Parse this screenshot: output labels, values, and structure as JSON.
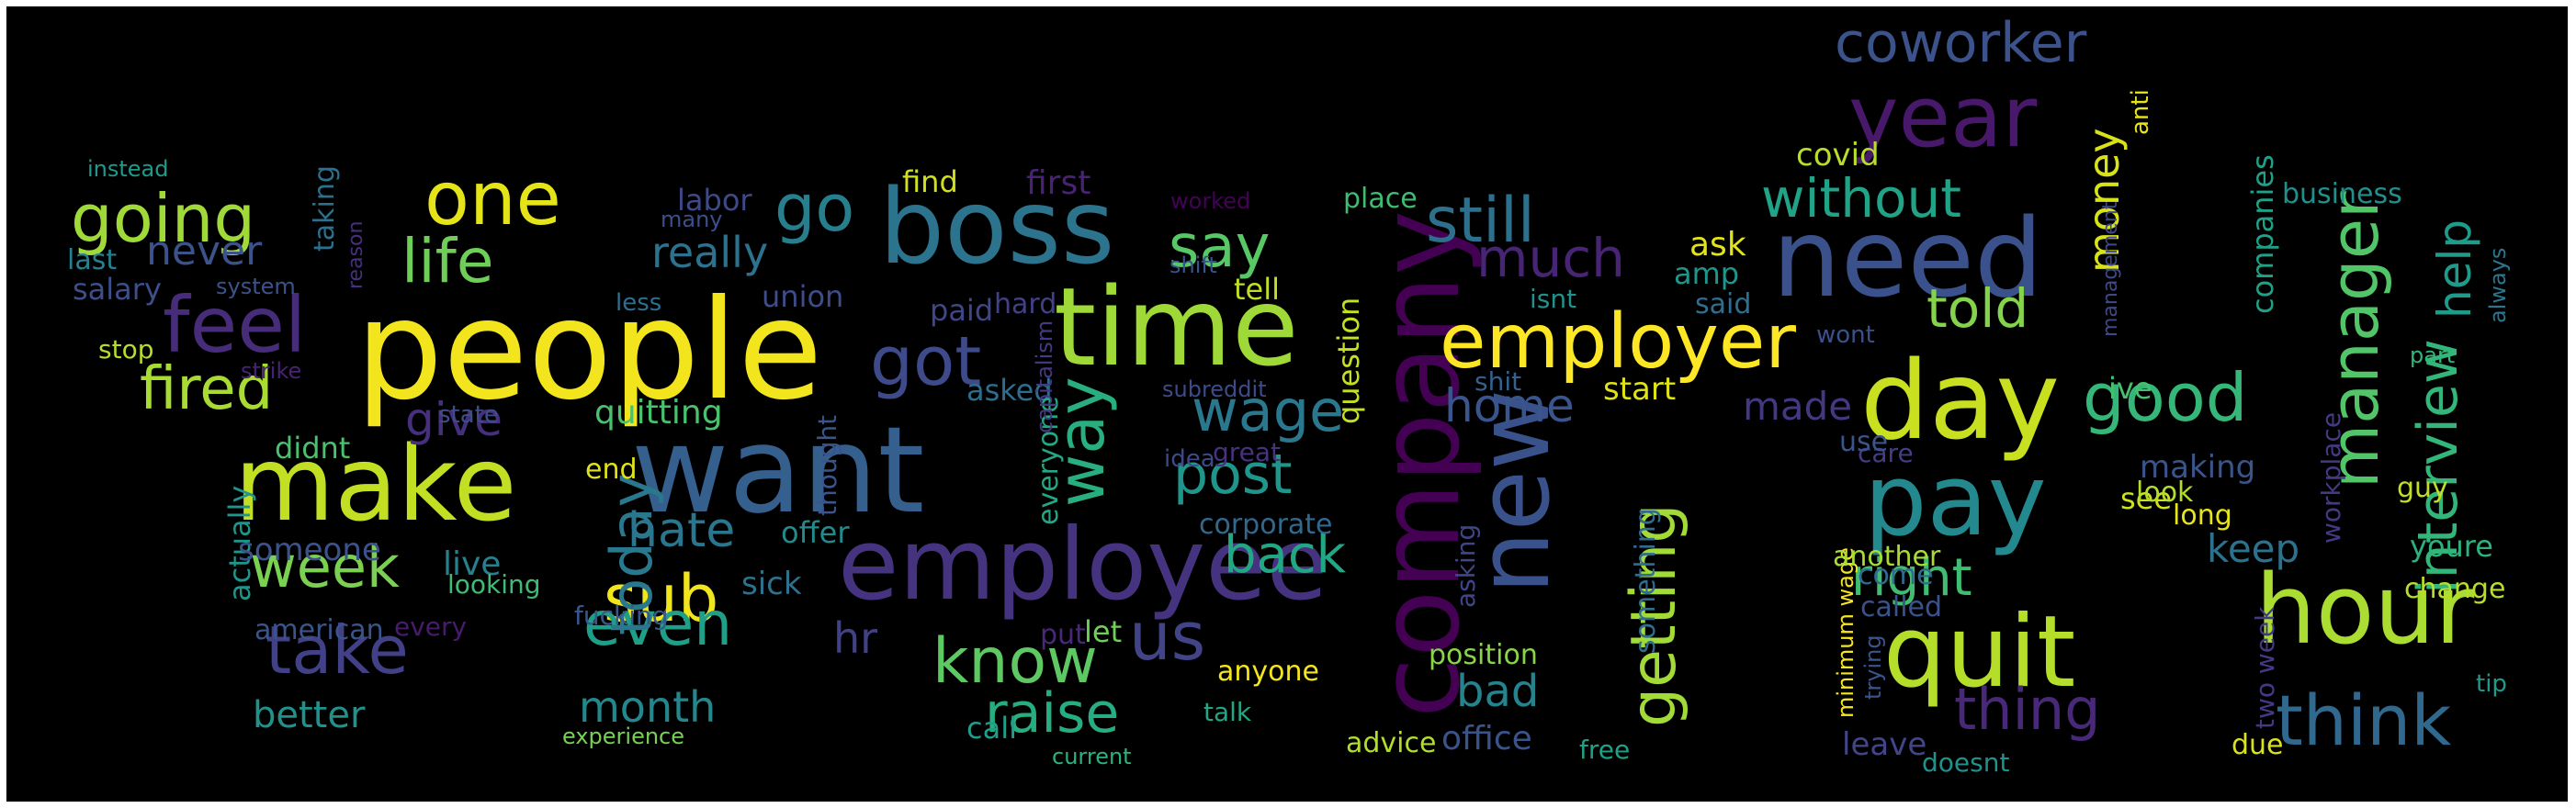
{
  "wordcloud": {
    "background_color": "#000000",
    "colormap": "viridis",
    "words": [
      {
        "text": "people",
        "color": "#f2e51d"
      },
      {
        "text": "time",
        "color": "#9fd938"
      },
      {
        "text": "boss",
        "color": "#2c738e"
      },
      {
        "text": "want",
        "color": "#355f8d"
      },
      {
        "text": "employee",
        "color": "#46337f"
      },
      {
        "text": "make",
        "color": "#c2df23"
      },
      {
        "text": "company",
        "color": "#440154"
      },
      {
        "text": "new",
        "color": "#3a528b"
      },
      {
        "text": "need",
        "color": "#3b518b"
      },
      {
        "text": "day",
        "color": "#c8e020"
      },
      {
        "text": "pay",
        "color": "#23898e"
      },
      {
        "text": "quit",
        "color": "#b5de2b"
      },
      {
        "text": "hour",
        "color": "#aadc32"
      },
      {
        "text": "year",
        "color": "#48186a"
      },
      {
        "text": "employer",
        "color": "#fde725"
      },
      {
        "text": "feel",
        "color": "#472c7a"
      },
      {
        "text": "going",
        "color": "#a0da39"
      },
      {
        "text": "one",
        "color": "#e5e419"
      },
      {
        "text": "life",
        "color": "#6ece58"
      },
      {
        "text": "got",
        "color": "#3e4a89"
      },
      {
        "text": "go",
        "color": "#277f8e"
      },
      {
        "text": "still",
        "color": "#2d708e"
      },
      {
        "text": "fired",
        "color": "#a8db34"
      },
      {
        "text": "week",
        "color": "#7ad151"
      },
      {
        "text": "take",
        "color": "#424086"
      },
      {
        "text": "sub",
        "color": "#f1e51d"
      },
      {
        "text": "even",
        "color": "#1f9f88"
      },
      {
        "text": "know",
        "color": "#5ec962"
      },
      {
        "text": "us",
        "color": "#414487"
      },
      {
        "text": "raise",
        "color": "#26ad81"
      },
      {
        "text": "wage",
        "color": "#2a788e"
      },
      {
        "text": "post",
        "color": "#1f968b"
      },
      {
        "text": "back",
        "color": "#22a785"
      },
      {
        "text": "way",
        "color": "#29af7f"
      },
      {
        "text": "say",
        "color": "#58c765"
      },
      {
        "text": "much",
        "color": "#482475"
      },
      {
        "text": "told",
        "color": "#84d44b"
      },
      {
        "text": "without",
        "color": "#20a386"
      },
      {
        "text": "coworker",
        "color": "#3b528b"
      },
      {
        "text": "getting",
        "color": "#a2da37"
      },
      {
        "text": "home",
        "color": "#3a548c"
      },
      {
        "text": "good",
        "color": "#35b779"
      },
      {
        "text": "manager",
        "color": "#52c569"
      },
      {
        "text": "interview",
        "color": "#32b67a"
      },
      {
        "text": "help",
        "color": "#1e9b8a"
      },
      {
        "text": "think",
        "color": "#31688e"
      },
      {
        "text": "thing",
        "color": "#482878"
      },
      {
        "text": "right",
        "color": "#40bd72"
      },
      {
        "text": "money",
        "color": "#d8e219"
      },
      {
        "text": "today",
        "color": "#2a788e"
      },
      {
        "text": "hate",
        "color": "#2a768e"
      },
      {
        "text": "give",
        "color": "#46307e"
      },
      {
        "text": "never",
        "color": "#3b528b"
      },
      {
        "text": "really",
        "color": "#2c728e"
      },
      {
        "text": "better",
        "color": "#20928c"
      },
      {
        "text": "month",
        "color": "#23888e"
      },
      {
        "text": "hr",
        "color": "#424186"
      },
      {
        "text": "bad",
        "color": "#25838e"
      },
      {
        "text": "office",
        "color": "#3a538b"
      },
      {
        "text": "made",
        "color": "#453781"
      },
      {
        "text": "keep",
        "color": "#2c718e"
      },
      {
        "text": "covid",
        "color": "#b8de29"
      },
      {
        "text": "ask",
        "color": "#e2e418"
      },
      {
        "text": "business",
        "color": "#21908d"
      },
      {
        "text": "companies",
        "color": "#1fa188"
      },
      {
        "text": "quitting",
        "color": "#4ac16d"
      },
      {
        "text": "labor",
        "color": "#3e4989"
      },
      {
        "text": "first",
        "color": "#482374"
      },
      {
        "text": "find",
        "color": "#d0e11c"
      },
      {
        "text": "union",
        "color": "#3e4c8a"
      },
      {
        "text": "paid",
        "color": "#3f4788"
      },
      {
        "text": "hard",
        "color": "#424086"
      },
      {
        "text": "tell",
        "color": "#c0df25"
      },
      {
        "text": "place",
        "color": "#3fbc73"
      },
      {
        "text": "worked",
        "color": "#440256"
      },
      {
        "text": "shift",
        "color": "#3b528b"
      },
      {
        "text": "question",
        "color": "#c5e021"
      },
      {
        "text": "isnt",
        "color": "#21918c"
      },
      {
        "text": "amp",
        "color": "#1f968b"
      },
      {
        "text": "said",
        "color": "#2e6e8e"
      },
      {
        "text": "start",
        "color": "#dde318"
      },
      {
        "text": "shit",
        "color": "#34618d"
      },
      {
        "text": "asked",
        "color": "#2e6d8e"
      },
      {
        "text": "everyone",
        "color": "#22a884"
      },
      {
        "text": "capitalism",
        "color": "#443983"
      },
      {
        "text": "subreddit",
        "color": "#3e4a89"
      },
      {
        "text": "thought",
        "color": "#39558c"
      },
      {
        "text": "idea",
        "color": "#3e4989"
      },
      {
        "text": "great",
        "color": "#46337f"
      },
      {
        "text": "corporate",
        "color": "#31688e"
      },
      {
        "text": "anyone",
        "color": "#f4e61e"
      },
      {
        "text": "let",
        "color": "#70cf57"
      },
      {
        "text": "put",
        "color": "#482878"
      },
      {
        "text": "call",
        "color": "#1f9e89"
      },
      {
        "text": "talk",
        "color": "#22a785"
      },
      {
        "text": "current",
        "color": "#2db27d"
      },
      {
        "text": "advice",
        "color": "#b2dd2d"
      },
      {
        "text": "position",
        "color": "#89d548"
      },
      {
        "text": "asking",
        "color": "#404588"
      },
      {
        "text": "something",
        "color": "#2f6c8e"
      },
      {
        "text": "free",
        "color": "#1fa187"
      },
      {
        "text": "offer",
        "color": "#238a8d"
      },
      {
        "text": "sick",
        "color": "#2c728e"
      },
      {
        "text": "live",
        "color": "#27808e"
      },
      {
        "text": "fucking",
        "color": "#38588c"
      },
      {
        "text": "looking",
        "color": "#3fbc73"
      },
      {
        "text": "end",
        "color": "#dfe318"
      },
      {
        "text": "state",
        "color": "#3d4e8a"
      },
      {
        "text": "every",
        "color": "#481b6d"
      },
      {
        "text": "didnt",
        "color": "#4ac16d"
      },
      {
        "text": "actually",
        "color": "#1f968b"
      },
      {
        "text": "someone",
        "color": "#3b528b"
      },
      {
        "text": "american",
        "color": "#3a548c"
      },
      {
        "text": "experience",
        "color": "#77d153"
      },
      {
        "text": "instead",
        "color": "#1f9a8a"
      },
      {
        "text": "last",
        "color": "#27808e"
      },
      {
        "text": "salary",
        "color": "#3d4e8a"
      },
      {
        "text": "stop",
        "color": "#b5de2b"
      },
      {
        "text": "system",
        "color": "#3b528b"
      },
      {
        "text": "taking",
        "color": "#2d708e"
      },
      {
        "text": "reason",
        "color": "#472f7d"
      },
      {
        "text": "strike",
        "color": "#482273"
      },
      {
        "text": "less",
        "color": "#2e6e8e"
      },
      {
        "text": "many",
        "color": "#3c4f8a"
      },
      {
        "text": "minimum wage",
        "color": "#f6e620"
      },
      {
        "text": "trying",
        "color": "#3a548c"
      },
      {
        "text": "another",
        "color": "#a8db34"
      },
      {
        "text": "come",
        "color": "#2f6b8e"
      },
      {
        "text": "called",
        "color": "#3b528b"
      },
      {
        "text": "leave",
        "color": "#404688"
      },
      {
        "text": "doesnt",
        "color": "#21918c"
      },
      {
        "text": "see",
        "color": "#cde11d"
      },
      {
        "text": "care",
        "color": "#433e85"
      },
      {
        "text": "use",
        "color": "#3a548c"
      },
      {
        "text": "ive",
        "color": "#46c06f"
      },
      {
        "text": "wont",
        "color": "#3b518b"
      },
      {
        "text": "anti",
        "color": "#e7e419"
      },
      {
        "text": "management",
        "color": "#3e4989"
      },
      {
        "text": "look",
        "color": "#b2dd2d"
      },
      {
        "text": "long",
        "color": "#e7e419"
      },
      {
        "text": "making",
        "color": "#3a548c"
      },
      {
        "text": "workplace",
        "color": "#443a83"
      },
      {
        "text": "guy",
        "color": "#c0df25"
      },
      {
        "text": "part",
        "color": "#32b67a"
      },
      {
        "text": "always",
        "color": "#2b758e"
      },
      {
        "text": "youre",
        "color": "#2db27d"
      },
      {
        "text": "change",
        "color": "#b8de29"
      },
      {
        "text": "two week",
        "color": "#443983"
      },
      {
        "text": "due",
        "color": "#dae319"
      },
      {
        "text": "tip",
        "color": "#1f9a8a"
      }
    ]
  }
}
